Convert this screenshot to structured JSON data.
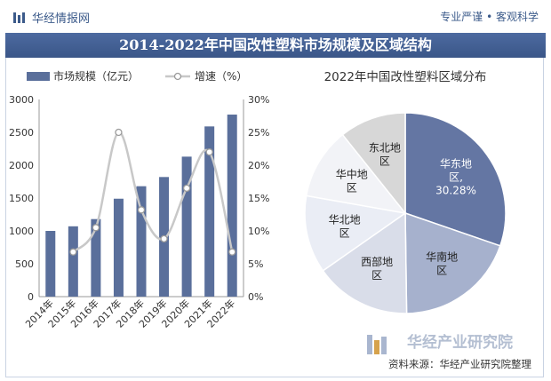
{
  "header": {
    "brand_name": "华经情报网",
    "slogan": "专业严谨 • 客观科学",
    "title": "2014-2022年中国改性塑料市场规模及区域结构"
  },
  "colors": {
    "brand": "#3b5a8a",
    "bar": "#5a6f9b",
    "line": "#c8c8c8",
    "title_bg": "#3f5b8e"
  },
  "chart_data": [
    {
      "type": "bar",
      "categories": [
        "2014年",
        "2015年",
        "2016年",
        "2017年",
        "2018年",
        "2019年",
        "2020年",
        "2021年",
        "2022年"
      ],
      "series": [
        {
          "name": "市场规模（亿元）",
          "type": "bar",
          "axis": "left",
          "values": [
            1000,
            1070,
            1180,
            1490,
            1680,
            1820,
            2130,
            2590,
            2770
          ]
        },
        {
          "name": "增速（%）",
          "type": "line",
          "axis": "right",
          "values": [
            null,
            6.8,
            10.5,
            25.0,
            13.2,
            8.8,
            16.5,
            22.0,
            6.8
          ]
        }
      ],
      "ylim": [
        0,
        3000
      ],
      "y_ticks": [
        "0",
        "500",
        "1000",
        "1500",
        "2000",
        "2500",
        "3000"
      ],
      "y2lim": [
        0,
        30
      ],
      "y2_ticks": [
        "0%",
        "5%",
        "10%",
        "15%",
        "20%",
        "25%",
        "30%"
      ],
      "legend_position": "top"
    },
    {
      "type": "pie",
      "title": "2022年中国改性塑料区域分布",
      "slices": [
        {
          "label": "华东地区, 30.28%",
          "value": 30.28,
          "color": "#6476a3",
          "text_color": "#ffffff"
        },
        {
          "label": "华南地区",
          "value": 19.5,
          "color": "#a6b1cd",
          "text_color": "#222222"
        },
        {
          "label": "西部地区",
          "value": 15.5,
          "color": "#d9dde9",
          "text_color": "#222222"
        },
        {
          "label": "华北地区",
          "value": 12.5,
          "color": "#eaedf5",
          "text_color": "#222222"
        },
        {
          "label": "华中地区",
          "value": 11.5,
          "color": "#f2f3f7",
          "text_color": "#222222"
        },
        {
          "label": "东北地区",
          "value": 10.72,
          "color": "#d7d7d7",
          "text_color": "#222222"
        }
      ]
    }
  ],
  "footer": {
    "institute": "华经产业研究院",
    "source": "资料来源：华经产业研究院整理"
  }
}
